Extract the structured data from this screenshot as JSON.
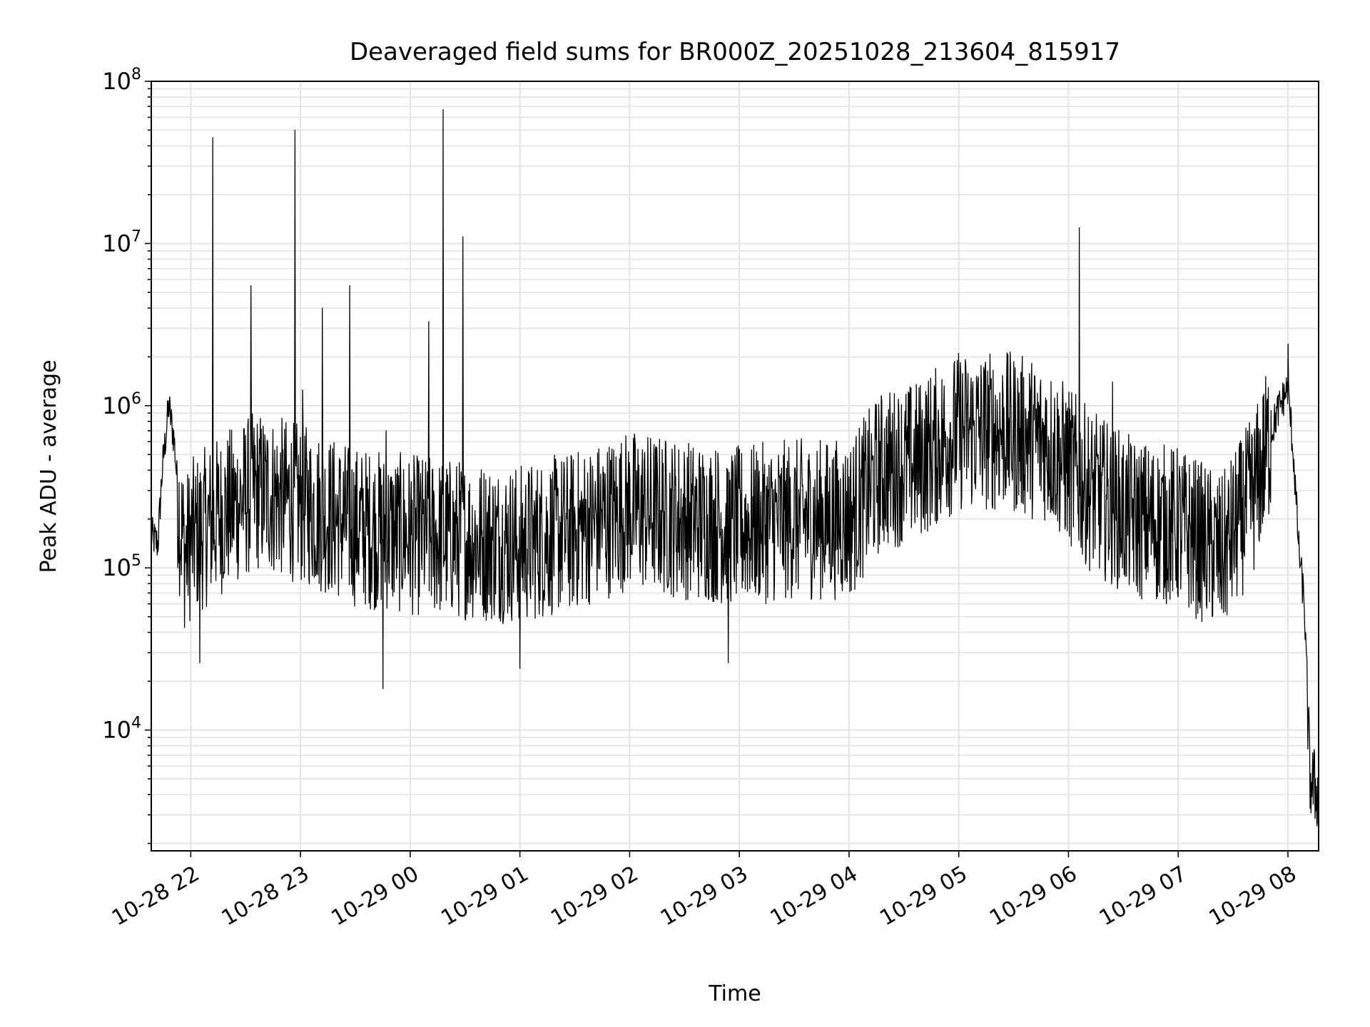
{
  "chart_data": {
    "type": "line",
    "title": "Deaveraged field sums for BR000Z_20251028_213604_815917",
    "xlabel": "Time",
    "ylabel": "Peak ADU - average",
    "yscale": "log",
    "ylim": [
      1800,
      100000000
    ],
    "xlim_hours": [
      -0.36,
      10.28
    ],
    "grid": true,
    "x_ticks": [
      {
        "label": "10-28 22",
        "hour": 0
      },
      {
        "label": "10-28 23",
        "hour": 1
      },
      {
        "label": "10-29 00",
        "hour": 2
      },
      {
        "label": "10-29 01",
        "hour": 3
      },
      {
        "label": "10-29 02",
        "hour": 4
      },
      {
        "label": "10-29 03",
        "hour": 5
      },
      {
        "label": "10-29 04",
        "hour": 6
      },
      {
        "label": "10-29 05",
        "hour": 7
      },
      {
        "label": "10-29 06",
        "hour": 8
      },
      {
        "label": "10-29 07",
        "hour": 9
      },
      {
        "label": "10-29 08",
        "hour": 10
      }
    ],
    "y_ticks": [
      {
        "base": "10",
        "exp": "4",
        "value": 10000
      },
      {
        "base": "10",
        "exp": "5",
        "value": 100000
      },
      {
        "base": "10",
        "exp": "6",
        "value": 1000000
      },
      {
        "base": "10",
        "exp": "7",
        "value": 10000000
      },
      {
        "base": "10",
        "exp": "8",
        "value": 100000000
      }
    ],
    "series": [
      {
        "name": "Peak ADU - average",
        "color": "#000000",
        "baseline_hours": [
          -0.36,
          -0.3,
          -0.26,
          -0.2,
          -0.15,
          -0.1,
          -0.05,
          0.0,
          0.3,
          0.6,
          1.0,
          1.5,
          2.0,
          2.5,
          3.0,
          3.5,
          4.0,
          4.5,
          5.0,
          5.5,
          6.0,
          6.3,
          6.6,
          7.0,
          7.4,
          7.8,
          8.2,
          8.6,
          9.0,
          9.4,
          9.7,
          9.9,
          10.0,
          10.05,
          10.1,
          10.15,
          10.2,
          10.28
        ],
        "baseline_values": [
          160000,
          140000,
          400000,
          1000000,
          600000,
          200000,
          120000,
          150000,
          220000,
          300000,
          250000,
          180000,
          160000,
          150000,
          140000,
          170000,
          230000,
          200000,
          180000,
          200000,
          200000,
          400000,
          450000,
          700000,
          700000,
          600000,
          300000,
          200000,
          180000,
          120000,
          300000,
          900000,
          1300000,
          500000,
          130000,
          60000,
          5000,
          4000
        ],
        "spikes": [
          {
            "hour": 0.2,
            "value": 45000000
          },
          {
            "hour": 0.55,
            "value": 5500000
          },
          {
            "hour": 0.95,
            "value": 50000000
          },
          {
            "hour": 1.02,
            "value": 1250000
          },
          {
            "hour": 1.2,
            "value": 4000000
          },
          {
            "hour": 1.45,
            "value": 5500000
          },
          {
            "hour": 1.78,
            "value": 700000
          },
          {
            "hour": 2.17,
            "value": 3300000
          },
          {
            "hour": 2.3,
            "value": 67000000
          },
          {
            "hour": 2.48,
            "value": 11000000
          },
          {
            "hour": 8.1,
            "value": 12500000
          },
          {
            "hour": 8.4,
            "value": 1400000
          },
          {
            "hour": 10.0,
            "value": 2400000
          }
        ],
        "dips": [
          {
            "hour": 1.75,
            "value": 18000
          },
          {
            "hour": 0.08,
            "value": 26000
          },
          {
            "hour": 4.9,
            "value": 26000
          },
          {
            "hour": 3.0,
            "value": 24000
          }
        ]
      }
    ]
  }
}
